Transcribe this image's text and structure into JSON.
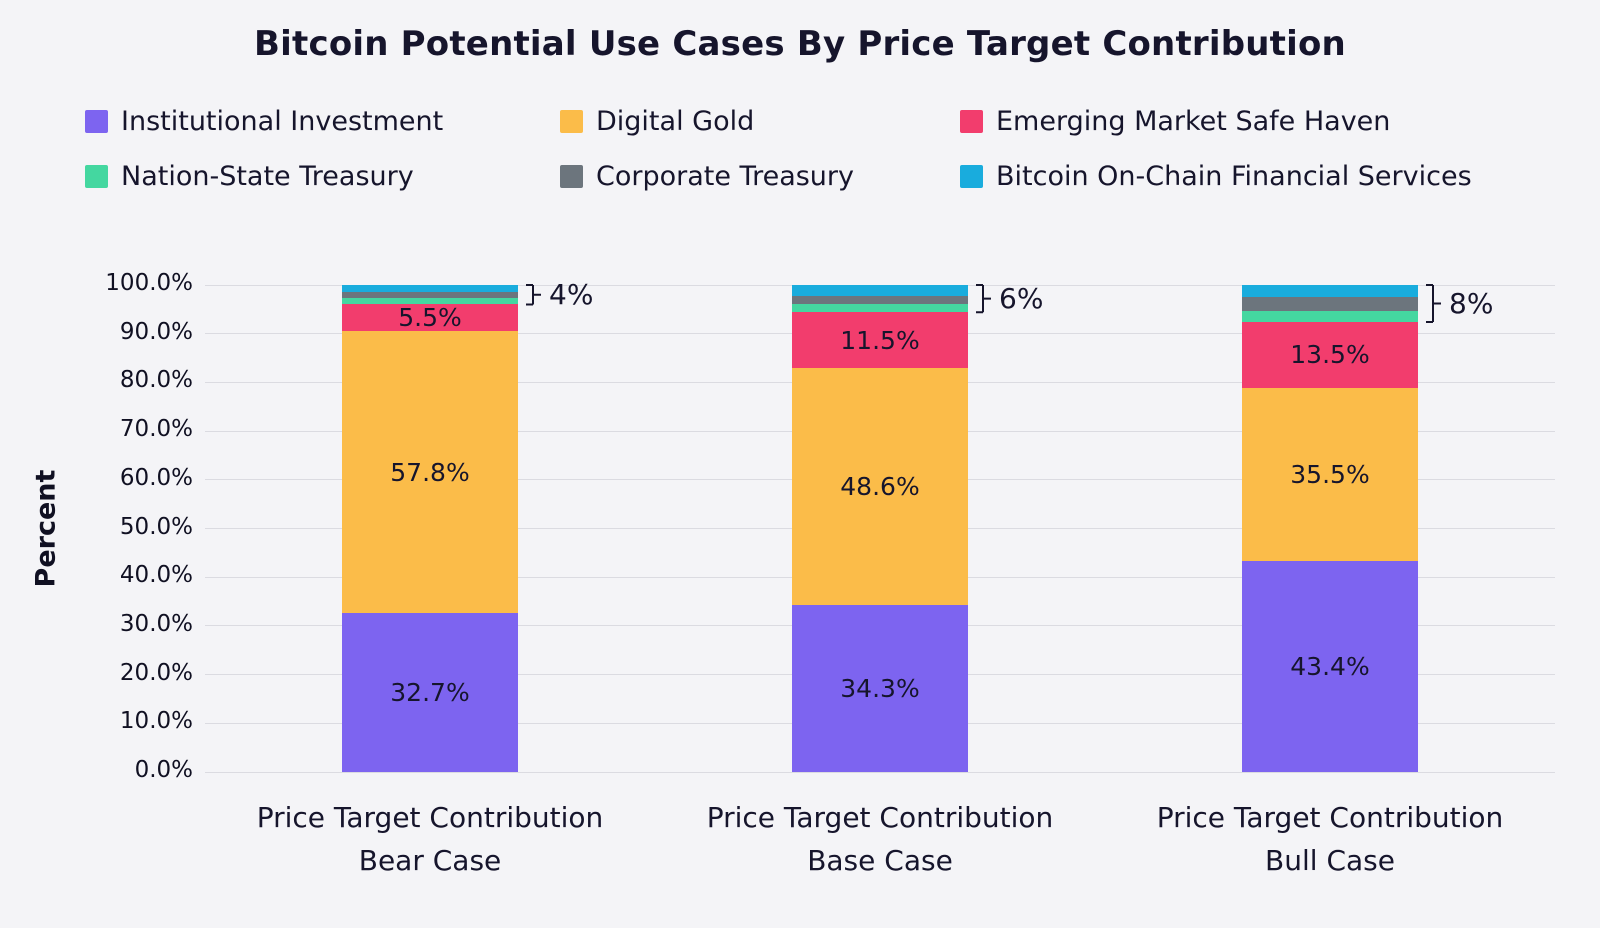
{
  "title": "Bitcoin Potential Use Cases By Price Target Contribution",
  "chart_data": {
    "type": "bar",
    "stacked": true,
    "title": "Bitcoin Potential Use Cases By Price Target Contribution",
    "ylabel": "Percent",
    "xlabel": "",
    "ylim": [
      0,
      100
    ],
    "ytick_step": 10,
    "ytick_labels": [
      "0.0%",
      "10.0%",
      "20.0%",
      "30.0%",
      "40.0%",
      "50.0%",
      "60.0%",
      "70.0%",
      "80.0%",
      "90.0%",
      "100.0%"
    ],
    "grid": true,
    "legend_position": "top",
    "label_min_pct": 5,
    "categories": [
      [
        "Price Target Contribution",
        "Bear Case"
      ],
      [
        "Price Target Contribution",
        "Base Case"
      ],
      [
        "Price Target Contribution",
        "Bull Case"
      ]
    ],
    "series": [
      {
        "name": "Institutional Investment",
        "color": "#7D64F0",
        "values": [
          32.7,
          34.3,
          43.4
        ]
      },
      {
        "name": "Digital Gold",
        "color": "#FBBC49",
        "values": [
          57.8,
          48.6,
          35.5
        ]
      },
      {
        "name": "Emerging Market Safe Haven",
        "color": "#F23D6D",
        "values": [
          5.5,
          11.5,
          13.5
        ]
      },
      {
        "name": "Nation-State Treasury",
        "color": "#44D7A0",
        "values": [
          1.3,
          1.7,
          2.2
        ]
      },
      {
        "name": "Corporate Treasury",
        "color": "#6C757D",
        "values": [
          1.3,
          1.7,
          3.0
        ]
      },
      {
        "name": "Bitcoin On-Chain Financial Services",
        "color": "#19ACDD",
        "values": [
          1.4,
          2.2,
          2.4
        ]
      }
    ],
    "annotations": [
      {
        "bar": 0,
        "text": "4%",
        "covers": [
          "Nation-State Treasury",
          "Corporate Treasury",
          "Bitcoin On-Chain Financial Services"
        ]
      },
      {
        "bar": 1,
        "text": "6%",
        "covers": [
          "Nation-State Treasury",
          "Corporate Treasury",
          "Bitcoin On-Chain Financial Services"
        ]
      },
      {
        "bar": 2,
        "text": "8%",
        "covers": [
          "Nation-State Treasury",
          "Corporate Treasury",
          "Bitcoin On-Chain Financial Services"
        ]
      }
    ]
  }
}
